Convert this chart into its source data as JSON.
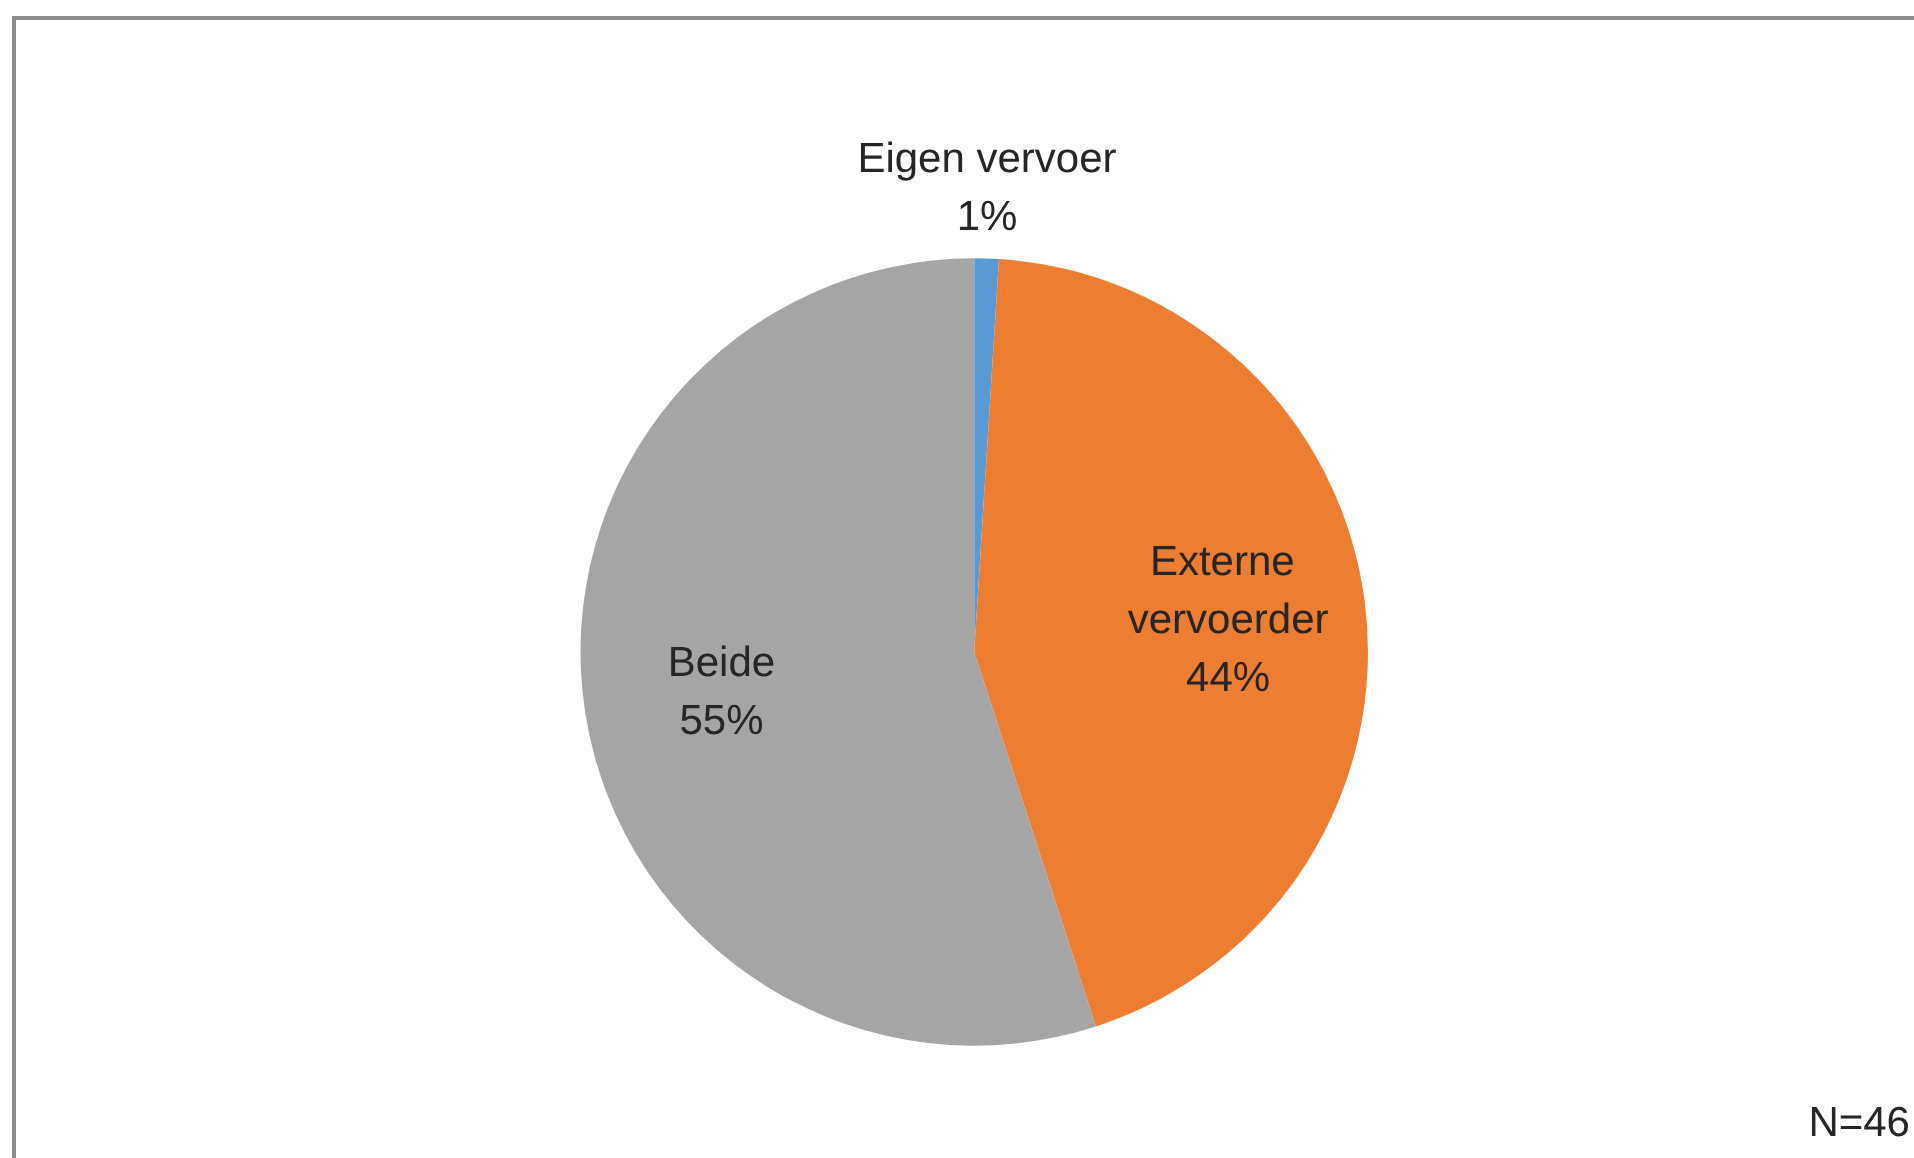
{
  "chart_data": {
    "type": "pie",
    "categories": [
      "Eigen vervoer",
      "Externe vervoerder",
      "Beide"
    ],
    "values": [
      1,
      44,
      55
    ],
    "value_labels": [
      "1%",
      "44%",
      "55%"
    ],
    "colors": [
      "#5b9bd5",
      "#ed7d31",
      "#a5a5a5"
    ],
    "annotations": [
      "N=46"
    ]
  }
}
